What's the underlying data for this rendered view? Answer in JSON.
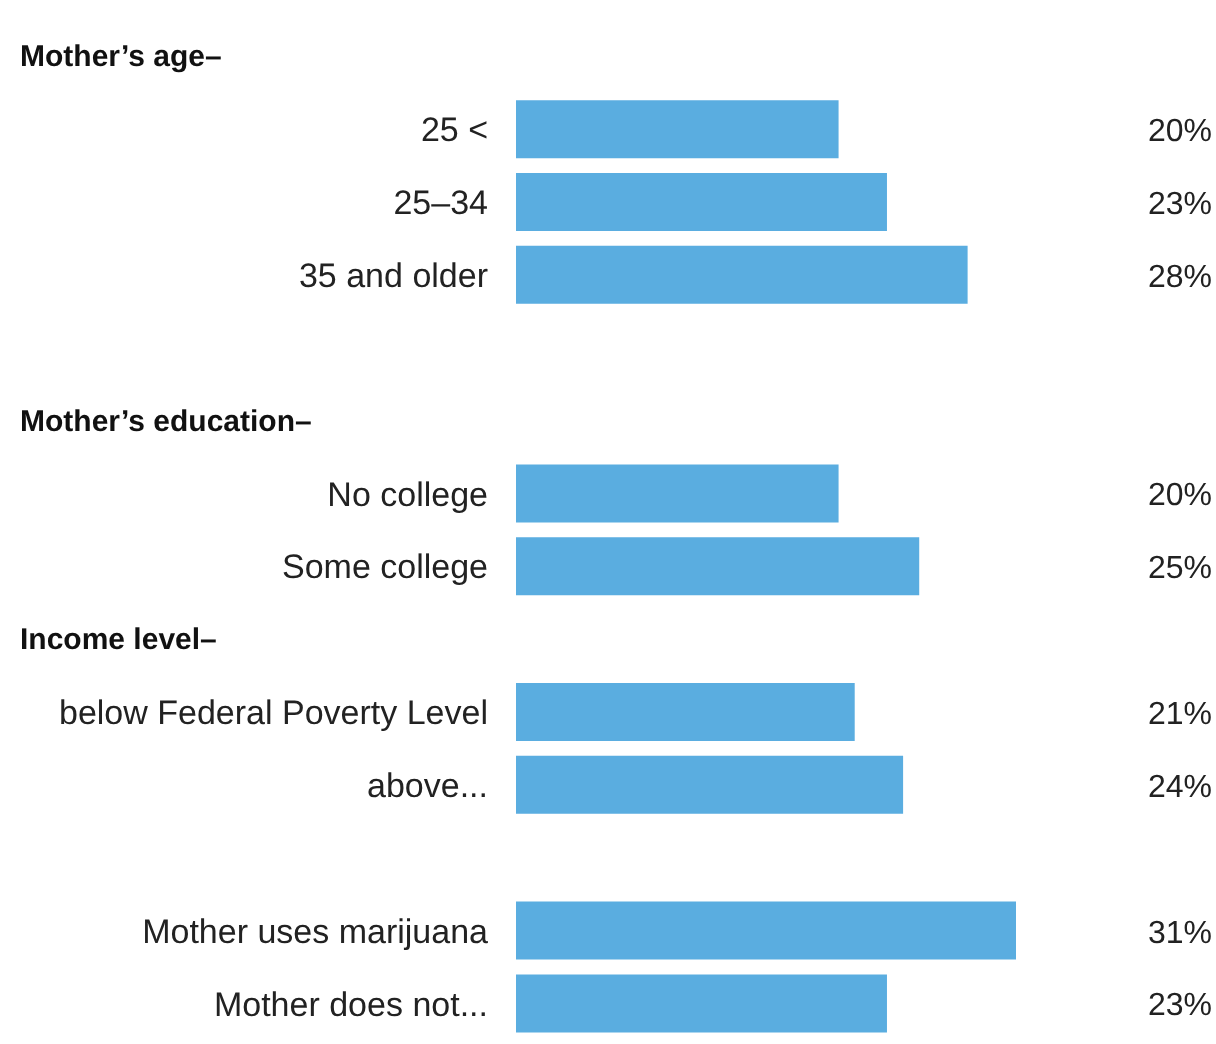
{
  "chart_data": {
    "type": "bar",
    "orientation": "horizontal",
    "categories": [
      null,
      "25 <",
      "25–34",
      "35 and older",
      null,
      null,
      "No college",
      "Some college",
      null,
      "below Federal Poverty Level",
      "above...",
      null,
      "Mother uses marijuana",
      "Mother does not..."
    ],
    "values": [
      null,
      20,
      23,
      28,
      null,
      null,
      20,
      25,
      null,
      21,
      24,
      null,
      31,
      23
    ],
    "value_labels": [
      null,
      "20%",
      "23%",
      "28%",
      null,
      null,
      "20%",
      "25%",
      null,
      "21%",
      "24%",
      null,
      "31%",
      "23%"
    ],
    "annotations": [
      "Mother’s age–",
      "Mother’s education–",
      "Income level–"
    ],
    "color": "#5aade0"
  }
}
